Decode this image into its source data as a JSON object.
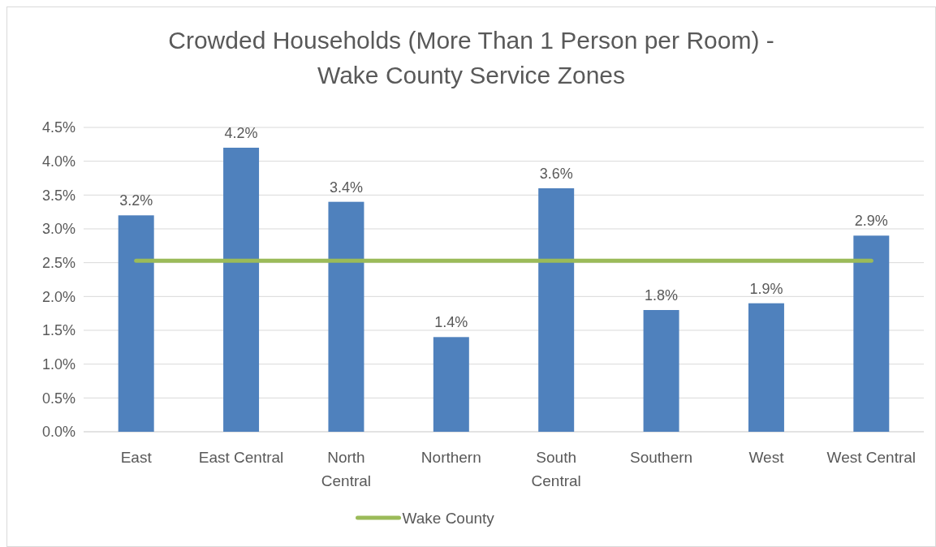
{
  "chart_data": {
    "type": "bar",
    "title": "Crowded Households (More Than 1 Person per Room) - Wake County Service Zones",
    "categories": [
      "East",
      "East Central",
      "North Central",
      "Northern",
      "South Central",
      "Southern",
      "West",
      "West Central"
    ],
    "series": [
      {
        "color": "#4f81bd",
        "values": [
          3.2,
          4.2,
          3.4,
          1.4,
          3.6,
          1.8,
          1.9,
          2.9
        ],
        "value_labels": [
          "3.2%",
          "4.2%",
          "3.4%",
          "1.4%",
          "3.6%",
          "1.8%",
          "1.9%",
          "2.9%"
        ]
      },
      {
        "type": "line",
        "name": "Wake County",
        "color": "#9bbb59",
        "values": [
          2.53,
          2.53,
          2.53,
          2.53,
          2.53,
          2.53,
          2.53,
          2.53
        ]
      }
    ],
    "ylim": [
      0,
      4.5
    ],
    "yticks": [
      {
        "value": 0,
        "label": "0.0%"
      },
      {
        "value": 0.5,
        "label": "0.5%"
      },
      {
        "value": 1,
        "label": "1.0%"
      },
      {
        "value": 1.5,
        "label": "1.5%"
      },
      {
        "value": 2,
        "label": "2.0%"
      },
      {
        "value": 2.5,
        "label": "2.5%"
      },
      {
        "value": 3,
        "label": "3.0%"
      },
      {
        "value": 3.5,
        "label": "3.5%"
      },
      {
        "value": 4,
        "label": "4.0%"
      },
      {
        "value": 4.5,
        "label": "4.5%"
      }
    ],
    "grid": "y",
    "legend": "bottom",
    "marker": "none"
  }
}
